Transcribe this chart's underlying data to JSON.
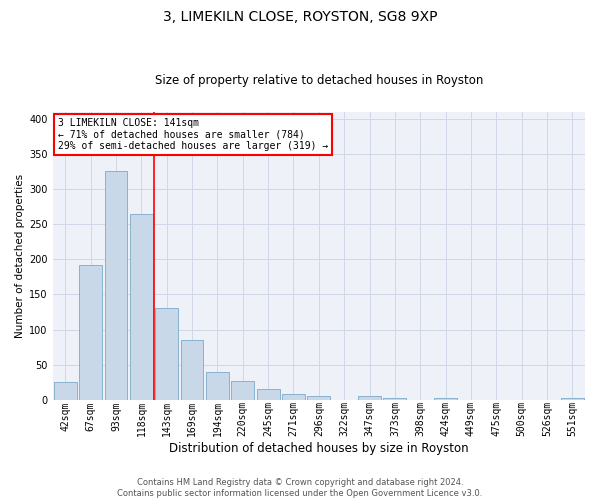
{
  "title": "3, LIMEKILN CLOSE, ROYSTON, SG8 9XP",
  "subtitle": "Size of property relative to detached houses in Royston",
  "xlabel": "Distribution of detached houses by size in Royston",
  "ylabel": "Number of detached properties",
  "categories": [
    "42sqm",
    "67sqm",
    "93sqm",
    "118sqm",
    "143sqm",
    "169sqm",
    "194sqm",
    "220sqm",
    "245sqm",
    "271sqm",
    "296sqm",
    "322sqm",
    "347sqm",
    "373sqm",
    "398sqm",
    "424sqm",
    "449sqm",
    "475sqm",
    "500sqm",
    "526sqm",
    "551sqm"
  ],
  "values": [
    25,
    192,
    325,
    265,
    130,
    85,
    40,
    27,
    15,
    8,
    5,
    0,
    5,
    3,
    0,
    3,
    0,
    0,
    0,
    0,
    3
  ],
  "bar_color": "#c8d8e8",
  "bar_edge_color": "#7aaac8",
  "grid_color": "#d0d8e8",
  "background_color": "#eef2f8",
  "red_line_index": 4,
  "annotation_text": "3 LIMEKILN CLOSE: 141sqm\n← 71% of detached houses are smaller (784)\n29% of semi-detached houses are larger (319) →",
  "annotation_box_color": "white",
  "annotation_box_edge_color": "red",
  "red_line_color": "red",
  "footer_line1": "Contains HM Land Registry data © Crown copyright and database right 2024.",
  "footer_line2": "Contains public sector information licensed under the Open Government Licence v3.0.",
  "ylim": [
    0,
    410
  ],
  "yticks": [
    0,
    50,
    100,
    150,
    200,
    250,
    300,
    350,
    400
  ],
  "title_fontsize": 10,
  "subtitle_fontsize": 8.5,
  "ylabel_fontsize": 7.5,
  "xlabel_fontsize": 8.5,
  "tick_fontsize": 7,
  "annot_fontsize": 7,
  "footer_fontsize": 6
}
